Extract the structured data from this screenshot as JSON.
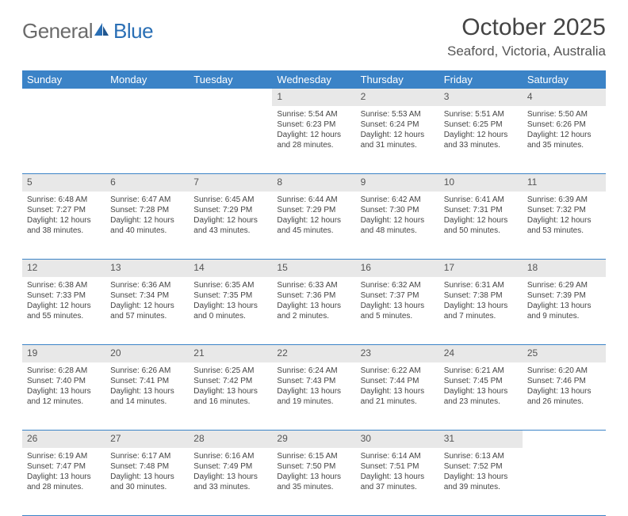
{
  "logo": {
    "part1": "General",
    "part2": "Blue"
  },
  "title": "October 2025",
  "location": "Seaford, Victoria, Australia",
  "columns": [
    "Sunday",
    "Monday",
    "Tuesday",
    "Wednesday",
    "Thursday",
    "Friday",
    "Saturday"
  ],
  "colors": {
    "header_bg": "#3b83c7",
    "header_text": "#ffffff",
    "daynum_bg": "#e8e8e8",
    "row_divider": "#3b83c7",
    "logo_gray": "#6b6b6b",
    "logo_blue": "#2a6fb5",
    "body_text": "#444444",
    "page_bg": "#ffffff"
  },
  "typography": {
    "title_fontsize": 30,
    "location_fontsize": 17,
    "header_fontsize": 13,
    "daynum_fontsize": 12,
    "cell_fontsize": 10,
    "logo_fontsize": 26
  },
  "weeks": [
    [
      null,
      null,
      null,
      {
        "day": "1",
        "sunrise": "Sunrise: 5:54 AM",
        "sunset": "Sunset: 6:23 PM",
        "daylight": "Daylight: 12 hours and 28 minutes."
      },
      {
        "day": "2",
        "sunrise": "Sunrise: 5:53 AM",
        "sunset": "Sunset: 6:24 PM",
        "daylight": "Daylight: 12 hours and 31 minutes."
      },
      {
        "day": "3",
        "sunrise": "Sunrise: 5:51 AM",
        "sunset": "Sunset: 6:25 PM",
        "daylight": "Daylight: 12 hours and 33 minutes."
      },
      {
        "day": "4",
        "sunrise": "Sunrise: 5:50 AM",
        "sunset": "Sunset: 6:26 PM",
        "daylight": "Daylight: 12 hours and 35 minutes."
      }
    ],
    [
      {
        "day": "5",
        "sunrise": "Sunrise: 6:48 AM",
        "sunset": "Sunset: 7:27 PM",
        "daylight": "Daylight: 12 hours and 38 minutes."
      },
      {
        "day": "6",
        "sunrise": "Sunrise: 6:47 AM",
        "sunset": "Sunset: 7:28 PM",
        "daylight": "Daylight: 12 hours and 40 minutes."
      },
      {
        "day": "7",
        "sunrise": "Sunrise: 6:45 AM",
        "sunset": "Sunset: 7:29 PM",
        "daylight": "Daylight: 12 hours and 43 minutes."
      },
      {
        "day": "8",
        "sunrise": "Sunrise: 6:44 AM",
        "sunset": "Sunset: 7:29 PM",
        "daylight": "Daylight: 12 hours and 45 minutes."
      },
      {
        "day": "9",
        "sunrise": "Sunrise: 6:42 AM",
        "sunset": "Sunset: 7:30 PM",
        "daylight": "Daylight: 12 hours and 48 minutes."
      },
      {
        "day": "10",
        "sunrise": "Sunrise: 6:41 AM",
        "sunset": "Sunset: 7:31 PM",
        "daylight": "Daylight: 12 hours and 50 minutes."
      },
      {
        "day": "11",
        "sunrise": "Sunrise: 6:39 AM",
        "sunset": "Sunset: 7:32 PM",
        "daylight": "Daylight: 12 hours and 53 minutes."
      }
    ],
    [
      {
        "day": "12",
        "sunrise": "Sunrise: 6:38 AM",
        "sunset": "Sunset: 7:33 PM",
        "daylight": "Daylight: 12 hours and 55 minutes."
      },
      {
        "day": "13",
        "sunrise": "Sunrise: 6:36 AM",
        "sunset": "Sunset: 7:34 PM",
        "daylight": "Daylight: 12 hours and 57 minutes."
      },
      {
        "day": "14",
        "sunrise": "Sunrise: 6:35 AM",
        "sunset": "Sunset: 7:35 PM",
        "daylight": "Daylight: 13 hours and 0 minutes."
      },
      {
        "day": "15",
        "sunrise": "Sunrise: 6:33 AM",
        "sunset": "Sunset: 7:36 PM",
        "daylight": "Daylight: 13 hours and 2 minutes."
      },
      {
        "day": "16",
        "sunrise": "Sunrise: 6:32 AM",
        "sunset": "Sunset: 7:37 PM",
        "daylight": "Daylight: 13 hours and 5 minutes."
      },
      {
        "day": "17",
        "sunrise": "Sunrise: 6:31 AM",
        "sunset": "Sunset: 7:38 PM",
        "daylight": "Daylight: 13 hours and 7 minutes."
      },
      {
        "day": "18",
        "sunrise": "Sunrise: 6:29 AM",
        "sunset": "Sunset: 7:39 PM",
        "daylight": "Daylight: 13 hours and 9 minutes."
      }
    ],
    [
      {
        "day": "19",
        "sunrise": "Sunrise: 6:28 AM",
        "sunset": "Sunset: 7:40 PM",
        "daylight": "Daylight: 13 hours and 12 minutes."
      },
      {
        "day": "20",
        "sunrise": "Sunrise: 6:26 AM",
        "sunset": "Sunset: 7:41 PM",
        "daylight": "Daylight: 13 hours and 14 minutes."
      },
      {
        "day": "21",
        "sunrise": "Sunrise: 6:25 AM",
        "sunset": "Sunset: 7:42 PM",
        "daylight": "Daylight: 13 hours and 16 minutes."
      },
      {
        "day": "22",
        "sunrise": "Sunrise: 6:24 AM",
        "sunset": "Sunset: 7:43 PM",
        "daylight": "Daylight: 13 hours and 19 minutes."
      },
      {
        "day": "23",
        "sunrise": "Sunrise: 6:22 AM",
        "sunset": "Sunset: 7:44 PM",
        "daylight": "Daylight: 13 hours and 21 minutes."
      },
      {
        "day": "24",
        "sunrise": "Sunrise: 6:21 AM",
        "sunset": "Sunset: 7:45 PM",
        "daylight": "Daylight: 13 hours and 23 minutes."
      },
      {
        "day": "25",
        "sunrise": "Sunrise: 6:20 AM",
        "sunset": "Sunset: 7:46 PM",
        "daylight": "Daylight: 13 hours and 26 minutes."
      }
    ],
    [
      {
        "day": "26",
        "sunrise": "Sunrise: 6:19 AM",
        "sunset": "Sunset: 7:47 PM",
        "daylight": "Daylight: 13 hours and 28 minutes."
      },
      {
        "day": "27",
        "sunrise": "Sunrise: 6:17 AM",
        "sunset": "Sunset: 7:48 PM",
        "daylight": "Daylight: 13 hours and 30 minutes."
      },
      {
        "day": "28",
        "sunrise": "Sunrise: 6:16 AM",
        "sunset": "Sunset: 7:49 PM",
        "daylight": "Daylight: 13 hours and 33 minutes."
      },
      {
        "day": "29",
        "sunrise": "Sunrise: 6:15 AM",
        "sunset": "Sunset: 7:50 PM",
        "daylight": "Daylight: 13 hours and 35 minutes."
      },
      {
        "day": "30",
        "sunrise": "Sunrise: 6:14 AM",
        "sunset": "Sunset: 7:51 PM",
        "daylight": "Daylight: 13 hours and 37 minutes."
      },
      {
        "day": "31",
        "sunrise": "Sunrise: 6:13 AM",
        "sunset": "Sunset: 7:52 PM",
        "daylight": "Daylight: 13 hours and 39 minutes."
      },
      null
    ]
  ]
}
